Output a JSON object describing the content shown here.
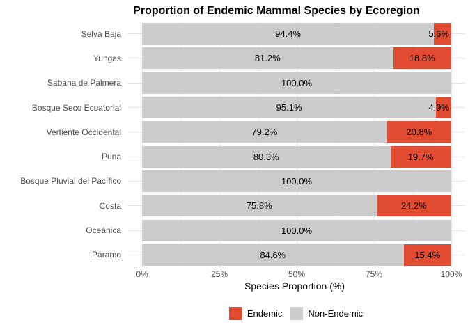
{
  "title": "Proportion of Endemic Mammal Species by Ecoregion",
  "chart_data": {
    "type": "bar",
    "orientation": "horizontal",
    "stacked": true,
    "title": "Proportion of Endemic Mammal Species by Ecoregion",
    "xlabel": "Species Proportion (%)",
    "ylabel": "",
    "xlim": [
      0,
      100
    ],
    "grid": true,
    "legend_position": "bottom",
    "categories": [
      "Selva Baja",
      "Yungas",
      "Sabana de Palmera",
      "Bosque Seco Ecuatorial",
      "Vertiente Occidental",
      "Puna",
      "Bosque Pluvial del Pacífico",
      "Costa",
      "Oceánica",
      "Páramo"
    ],
    "series": [
      {
        "name": "Non-Endemic",
        "color": "#cbcbcb",
        "values": [
          94.4,
          81.2,
          100.0,
          95.1,
          79.2,
          80.3,
          100.0,
          75.8,
          100.0,
          84.6
        ],
        "labels": [
          "94.4%",
          "81.2%",
          "100.0%",
          "95.1%",
          "79.2%",
          "80.3%",
          "100.0%",
          "75.8%",
          "100.0%",
          "84.6%"
        ]
      },
      {
        "name": "Endemic",
        "color": "#e04b32",
        "values": [
          5.6,
          18.8,
          0,
          4.9,
          20.8,
          19.7,
          0,
          24.2,
          0,
          15.4
        ],
        "labels": [
          "5.6%",
          "18.8%",
          "",
          "4.9%",
          "20.8%",
          "19.7%",
          "",
          "24.2%",
          "",
          "15.4%"
        ]
      }
    ],
    "x_ticks": [
      "0%",
      "25%",
      "50%",
      "75%",
      "100%"
    ],
    "x_tick_values": [
      0,
      25,
      50,
      75,
      100
    ],
    "x_minor_tick_values": [
      12.5,
      37.5,
      62.5,
      87.5
    ],
    "legend": [
      {
        "label": "Endemic",
        "color": "#e04b32"
      },
      {
        "label": "Non-Endemic",
        "color": "#cbcbcb"
      }
    ]
  },
  "colors": {
    "background": "#ffffff",
    "endemic": "#e04b32",
    "non_endemic": "#cbcbcb",
    "grid_major": "#e6e6e6",
    "grid_minor": "#f0f0f0",
    "axis_text": "#4d4d4d",
    "label_text": "#000000"
  }
}
